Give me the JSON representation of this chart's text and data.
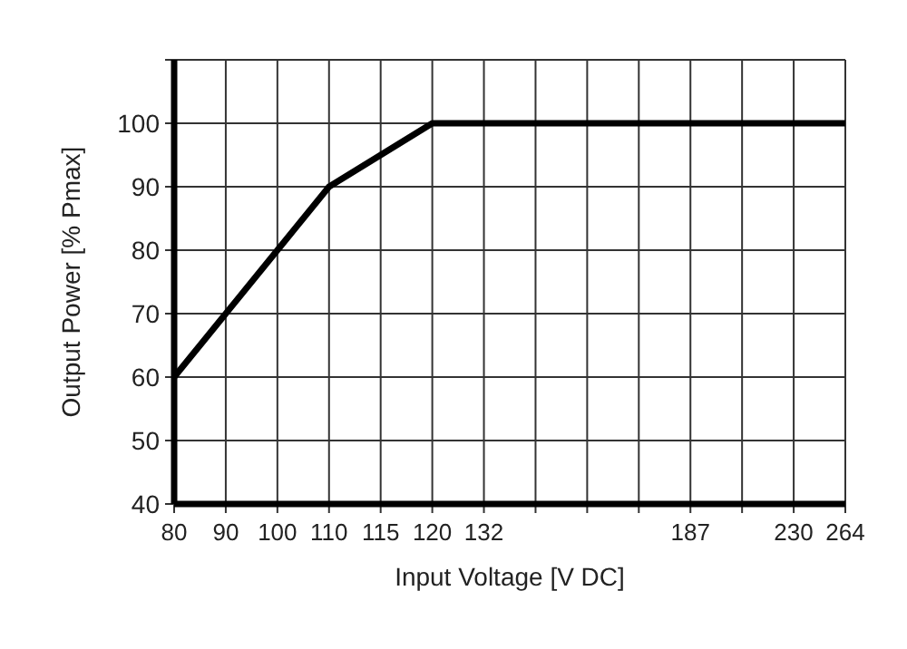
{
  "chart_data": {
    "type": "line",
    "xlabel": "Input Voltage [V DC]",
    "ylabel": "Output Power [% Pmax]",
    "categories": [
      "80",
      "90",
      "100",
      "110",
      "115",
      "120",
      "132",
      null,
      null,
      null,
      "187",
      null,
      "230",
      "264"
    ],
    "series": [
      {
        "color": "#000000",
        "values": [
          60,
          70,
          80,
          90,
          95,
          100,
          100,
          100,
          100,
          100,
          100,
          100,
          100,
          100
        ]
      }
    ],
    "ylim": [
      40,
      110
    ],
    "yticks": [
      40,
      50,
      60,
      70,
      80,
      90,
      100,
      {
        "value": 110,
        "label": null
      }
    ],
    "grid": true,
    "marker": "none",
    "line_style": "solid"
  }
}
